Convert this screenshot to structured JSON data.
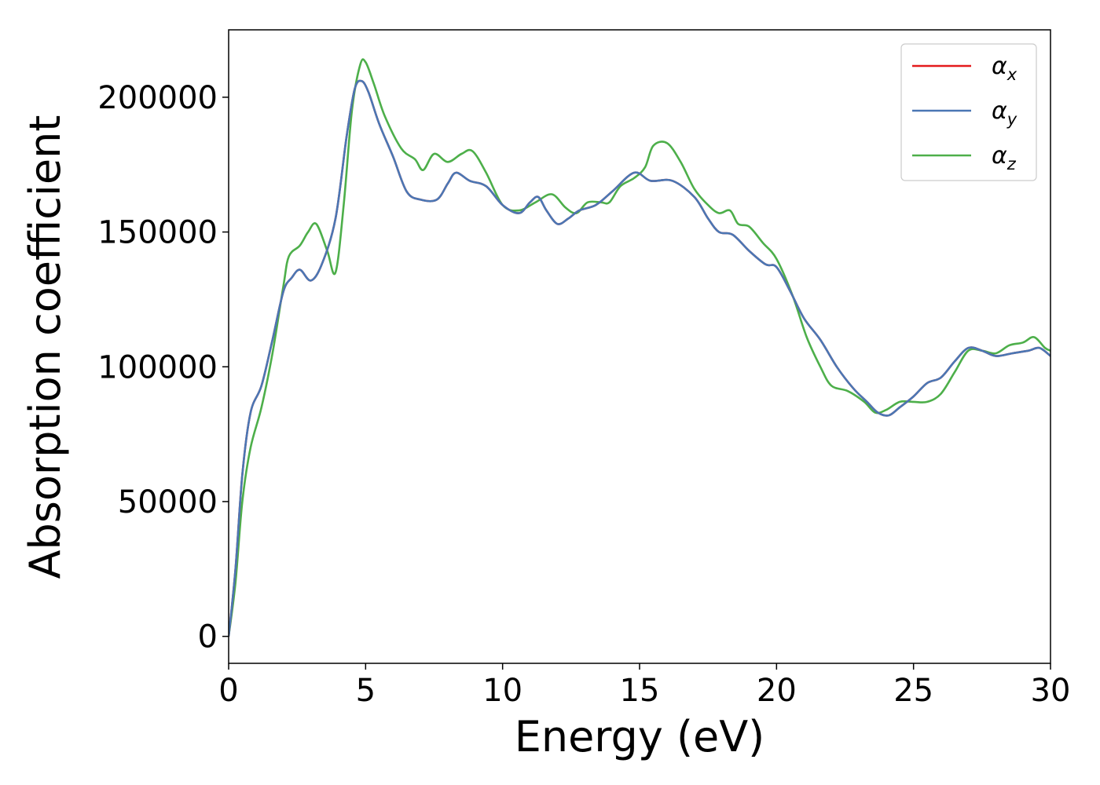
{
  "chart_data": {
    "type": "line",
    "title": "",
    "xlabel": "Energy (eV)",
    "ylabel": "Absorption coefficient",
    "xlim": [
      0,
      30
    ],
    "ylim": [
      -10000,
      225000
    ],
    "xticks": [
      0,
      5,
      10,
      15,
      20,
      25,
      30
    ],
    "xtick_labels": [
      "0",
      "5",
      "10",
      "15",
      "20",
      "25",
      "30"
    ],
    "yticks": [
      0,
      50000,
      100000,
      150000,
      200000
    ],
    "ytick_labels": [
      "0",
      "50000",
      "100000",
      "150000",
      "200000"
    ],
    "grid": false,
    "legend": "top-right",
    "series": [
      {
        "name": "αx",
        "symbol": "α",
        "subscript": "x",
        "color": "#e41a1c",
        "points": [
          [
            0,
            0
          ],
          [
            0.25,
            25000
          ],
          [
            0.5,
            60000
          ],
          [
            0.8,
            83000
          ],
          [
            1.2,
            93000
          ],
          [
            1.6,
            110000
          ],
          [
            2.0,
            128000
          ],
          [
            2.3,
            133000
          ],
          [
            2.6,
            136000
          ],
          [
            3.0,
            132000
          ],
          [
            3.4,
            138000
          ],
          [
            3.9,
            155000
          ],
          [
            4.3,
            185000
          ],
          [
            4.6,
            203000
          ],
          [
            4.85,
            206000
          ],
          [
            5.1,
            202000
          ],
          [
            5.5,
            190000
          ],
          [
            6.0,
            178000
          ],
          [
            6.5,
            165000
          ],
          [
            7.0,
            162000
          ],
          [
            7.6,
            162000
          ],
          [
            8.0,
            168000
          ],
          [
            8.3,
            172000
          ],
          [
            8.8,
            169000
          ],
          [
            9.4,
            167000
          ],
          [
            10.0,
            160000
          ],
          [
            10.6,
            157000
          ],
          [
            11.0,
            161000
          ],
          [
            11.3,
            163000
          ],
          [
            11.6,
            158000
          ],
          [
            12.0,
            153000
          ],
          [
            12.4,
            155000
          ],
          [
            12.8,
            158000
          ],
          [
            13.4,
            160000
          ],
          [
            14.0,
            165000
          ],
          [
            14.8,
            172000
          ],
          [
            15.4,
            169000
          ],
          [
            16.2,
            169000
          ],
          [
            17.0,
            163000
          ],
          [
            17.5,
            155000
          ],
          [
            17.9,
            150000
          ],
          [
            18.4,
            149000
          ],
          [
            19.0,
            143000
          ],
          [
            19.6,
            138000
          ],
          [
            20.0,
            137000
          ],
          [
            20.5,
            128000
          ],
          [
            21.0,
            118000
          ],
          [
            21.6,
            110000
          ],
          [
            22.2,
            100000
          ],
          [
            22.8,
            92000
          ],
          [
            23.3,
            87000
          ],
          [
            23.7,
            83000
          ],
          [
            24.1,
            82000
          ],
          [
            24.5,
            85000
          ],
          [
            25.0,
            89000
          ],
          [
            25.5,
            94000
          ],
          [
            26.0,
            96000
          ],
          [
            26.5,
            102000
          ],
          [
            27.0,
            107000
          ],
          [
            27.5,
            106000
          ],
          [
            28.0,
            104000
          ],
          [
            28.6,
            105000
          ],
          [
            29.2,
            106000
          ],
          [
            29.6,
            107000
          ],
          [
            30.0,
            104000
          ]
        ]
      },
      {
        "name": "αy",
        "symbol": "α",
        "subscript": "y",
        "color": "#4a77b4",
        "points": [
          [
            0,
            0
          ],
          [
            0.25,
            25000
          ],
          [
            0.5,
            60000
          ],
          [
            0.8,
            83000
          ],
          [
            1.2,
            93000
          ],
          [
            1.6,
            110000
          ],
          [
            2.0,
            128000
          ],
          [
            2.3,
            133000
          ],
          [
            2.6,
            136000
          ],
          [
            3.0,
            132000
          ],
          [
            3.4,
            138000
          ],
          [
            3.9,
            155000
          ],
          [
            4.3,
            185000
          ],
          [
            4.6,
            203000
          ],
          [
            4.85,
            206000
          ],
          [
            5.1,
            202000
          ],
          [
            5.5,
            190000
          ],
          [
            6.0,
            178000
          ],
          [
            6.5,
            165000
          ],
          [
            7.0,
            162000
          ],
          [
            7.6,
            162000
          ],
          [
            8.0,
            168000
          ],
          [
            8.3,
            172000
          ],
          [
            8.8,
            169000
          ],
          [
            9.4,
            167000
          ],
          [
            10.0,
            160000
          ],
          [
            10.6,
            157000
          ],
          [
            11.0,
            161000
          ],
          [
            11.3,
            163000
          ],
          [
            11.6,
            158000
          ],
          [
            12.0,
            153000
          ],
          [
            12.4,
            155000
          ],
          [
            12.8,
            158000
          ],
          [
            13.4,
            160000
          ],
          [
            14.0,
            165000
          ],
          [
            14.8,
            172000
          ],
          [
            15.4,
            169000
          ],
          [
            16.2,
            169000
          ],
          [
            17.0,
            163000
          ],
          [
            17.5,
            155000
          ],
          [
            17.9,
            150000
          ],
          [
            18.4,
            149000
          ],
          [
            19.0,
            143000
          ],
          [
            19.6,
            138000
          ],
          [
            20.0,
            137000
          ],
          [
            20.5,
            128000
          ],
          [
            21.0,
            118000
          ],
          [
            21.6,
            110000
          ],
          [
            22.2,
            100000
          ],
          [
            22.8,
            92000
          ],
          [
            23.3,
            87000
          ],
          [
            23.7,
            83000
          ],
          [
            24.1,
            82000
          ],
          [
            24.5,
            85000
          ],
          [
            25.0,
            89000
          ],
          [
            25.5,
            94000
          ],
          [
            26.0,
            96000
          ],
          [
            26.5,
            102000
          ],
          [
            27.0,
            107000
          ],
          [
            27.5,
            106000
          ],
          [
            28.0,
            104000
          ],
          [
            28.6,
            105000
          ],
          [
            29.2,
            106000
          ],
          [
            29.6,
            107000
          ],
          [
            30.0,
            104000
          ]
        ]
      },
      {
        "name": "αz",
        "symbol": "α",
        "subscript": "z",
        "color": "#4daf4a",
        "points": [
          [
            0,
            0
          ],
          [
            0.25,
            20000
          ],
          [
            0.5,
            50000
          ],
          [
            0.8,
            70000
          ],
          [
            1.2,
            85000
          ],
          [
            1.6,
            105000
          ],
          [
            2.0,
            130000
          ],
          [
            2.2,
            141000
          ],
          [
            2.6,
            145000
          ],
          [
            2.9,
            150000
          ],
          [
            3.2,
            153000
          ],
          [
            3.6,
            143000
          ],
          [
            3.9,
            135000
          ],
          [
            4.2,
            160000
          ],
          [
            4.5,
            195000
          ],
          [
            4.8,
            212000
          ],
          [
            5.0,
            213000
          ],
          [
            5.3,
            205000
          ],
          [
            5.7,
            193000
          ],
          [
            6.3,
            181000
          ],
          [
            6.8,
            177000
          ],
          [
            7.1,
            173000
          ],
          [
            7.5,
            179000
          ],
          [
            8.0,
            176000
          ],
          [
            8.5,
            179000
          ],
          [
            8.9,
            180000
          ],
          [
            9.4,
            172000
          ],
          [
            10.0,
            160000
          ],
          [
            10.6,
            158000
          ],
          [
            11.2,
            161000
          ],
          [
            11.8,
            164000
          ],
          [
            12.3,
            159000
          ],
          [
            12.7,
            157000
          ],
          [
            13.1,
            161000
          ],
          [
            13.6,
            161000
          ],
          [
            13.9,
            161000
          ],
          [
            14.3,
            167000
          ],
          [
            14.8,
            170000
          ],
          [
            15.2,
            174000
          ],
          [
            15.5,
            182000
          ],
          [
            16.0,
            183000
          ],
          [
            16.5,
            176000
          ],
          [
            17.0,
            166000
          ],
          [
            17.5,
            160000
          ],
          [
            17.9,
            157000
          ],
          [
            18.3,
            158000
          ],
          [
            18.6,
            153000
          ],
          [
            19.0,
            152000
          ],
          [
            19.5,
            146000
          ],
          [
            20.0,
            140000
          ],
          [
            20.6,
            126000
          ],
          [
            21.1,
            111000
          ],
          [
            21.6,
            100000
          ],
          [
            22.0,
            93000
          ],
          [
            22.6,
            91000
          ],
          [
            23.2,
            87000
          ],
          [
            23.6,
            83000
          ],
          [
            24.0,
            84000
          ],
          [
            24.5,
            87000
          ],
          [
            25.0,
            87000
          ],
          [
            25.5,
            87000
          ],
          [
            26.0,
            90000
          ],
          [
            26.5,
            98000
          ],
          [
            27.0,
            106000
          ],
          [
            27.5,
            106000
          ],
          [
            28.0,
            105000
          ],
          [
            28.5,
            108000
          ],
          [
            29.0,
            109000
          ],
          [
            29.4,
            111000
          ],
          [
            29.8,
            107000
          ],
          [
            30.0,
            106000
          ]
        ]
      }
    ]
  }
}
